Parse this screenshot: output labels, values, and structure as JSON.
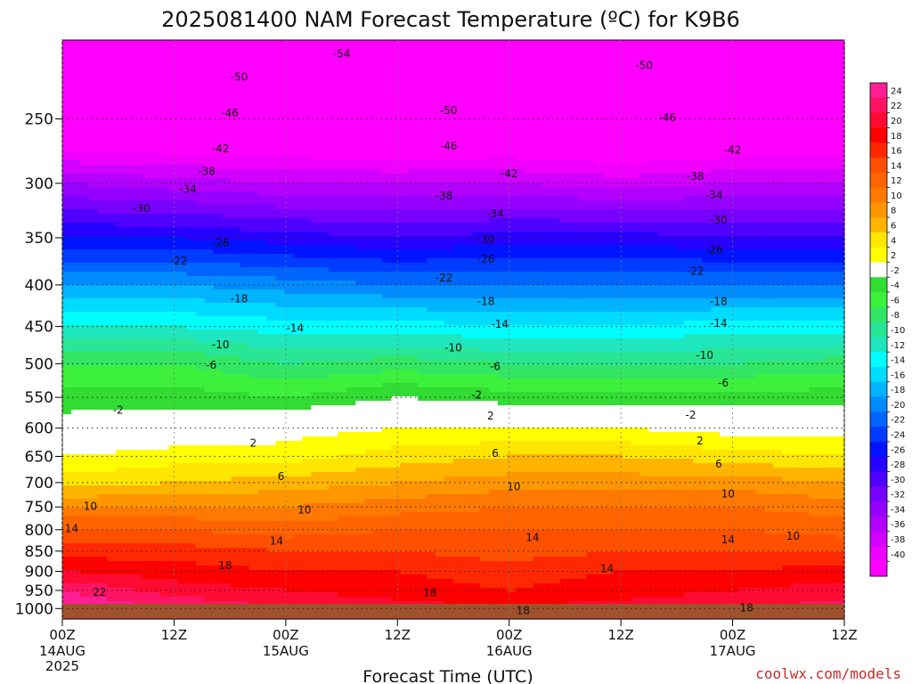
{
  "title": "2025081400 NAM Forecast Temperature (ºC) for K9B6",
  "xlabel": "Forecast Time (UTC)",
  "credit": "coolwx.com/models",
  "chart_data": {
    "type": "heatmap",
    "variable": "Temperature (ºC)",
    "y_axis": {
      "quantity": "pressure (hPa)",
      "orientation": "decreasing upward",
      "ticks": [
        250,
        300,
        350,
        400,
        450,
        500,
        550,
        600,
        650,
        700,
        750,
        800,
        850,
        900,
        950,
        1000
      ],
      "range": [
        1030,
        200
      ]
    },
    "x_axis": {
      "quantity": "forecast time (UTC)",
      "range_hours": [
        0,
        84
      ],
      "ticks": [
        {
          "hour": 0,
          "label": "00Z",
          "sub": [
            "14AUG",
            "2025"
          ]
        },
        {
          "hour": 12,
          "label": "12Z",
          "sub": []
        },
        {
          "hour": 24,
          "label": "00Z",
          "sub": [
            "15AUG"
          ]
        },
        {
          "hour": 36,
          "label": "12Z",
          "sub": []
        },
        {
          "hour": 48,
          "label": "00Z",
          "sub": [
            "16AUG"
          ]
        },
        {
          "hour": 60,
          "label": "12Z",
          "sub": []
        },
        {
          "hour": 72,
          "label": "00Z",
          "sub": [
            "17AUG"
          ]
        },
        {
          "hour": 84,
          "label": "12Z",
          "sub": []
        }
      ]
    },
    "grid": true,
    "colorbar": {
      "position": "right",
      "labels": [
        24,
        22,
        20,
        18,
        16,
        14,
        12,
        10,
        8,
        6,
        4,
        2,
        -2,
        -4,
        -6,
        -8,
        -10,
        -12,
        -14,
        -16,
        -18,
        -20,
        -22,
        -24,
        -26,
        -28,
        -30,
        -32,
        -34,
        -36,
        -38,
        -40
      ],
      "colors": [
        "#ff1e96",
        "#ff1464",
        "#ff0a32",
        "#ff0000",
        "#ff2800",
        "#ff5000",
        "#ff6400",
        "#ff7800",
        "#ff9600",
        "#ffb400",
        "#ffe600",
        "#ffff00",
        "#ffffff",
        "#32dc32",
        "#3cf03c",
        "#32e664",
        "#28e696",
        "#1ee6be",
        "#00ffff",
        "#00dcff",
        "#00b4ff",
        "#008cff",
        "#0064ff",
        "#003cff",
        "#0014ff",
        "#2800ff",
        "#5000ff",
        "#7800ff",
        "#9600ff",
        "#b400ff",
        "#d200ff",
        "#f000ff",
        "#ff00ff"
      ]
    },
    "temperature_profiles": {
      "pressure_levels": [
        1000,
        950,
        900,
        850,
        800,
        750,
        700,
        650,
        600,
        550,
        500,
        450,
        400,
        350,
        300,
        250,
        200
      ],
      "hours": [
        0,
        12,
        24,
        36,
        48,
        60,
        72,
        84
      ],
      "values": [
        [
          26,
          24,
          20,
          17,
          14,
          10,
          5,
          2,
          -1,
          -3,
          -6,
          -12,
          -18,
          -26,
          -34,
          -46,
          -56
        ],
        [
          24,
          21,
          19,
          17,
          14,
          10,
          6,
          3,
          0,
          -3,
          -6,
          -12,
          -18,
          -26,
          -35,
          -46,
          -56
        ],
        [
          22,
          20,
          18,
          16,
          13,
          10,
          7,
          3,
          1,
          -4,
          -8,
          -13,
          -19,
          -27,
          -36,
          -46,
          -55
        ],
        [
          21,
          19,
          18,
          16,
          14,
          11,
          8,
          5,
          2,
          -2,
          -7,
          -13,
          -20,
          -28,
          -36,
          -47,
          -55
        ],
        [
          20,
          18,
          17,
          15,
          14,
          12,
          9,
          6,
          2,
          -3,
          -8,
          -14,
          -20,
          -27,
          -36,
          -46,
          -55
        ],
        [
          21,
          19,
          18,
          16,
          14,
          12,
          9,
          6,
          2,
          -3,
          -8,
          -14,
          -20,
          -27,
          -37,
          -47,
          -55
        ],
        [
          22,
          20,
          18,
          16,
          14,
          12,
          9,
          5,
          1,
          -3,
          -8,
          -13,
          -20,
          -28,
          -36,
          -46,
          -54
        ],
        [
          23,
          21,
          19,
          16,
          13,
          11,
          8,
          4,
          1,
          -3,
          -7,
          -13,
          -20,
          -28,
          -36,
          -46,
          -54
        ]
      ]
    },
    "contour_labels": [
      {
        "text": "-54",
        "hour": 30,
        "p": 208
      },
      {
        "text": "-50",
        "hour": 19,
        "p": 222
      },
      {
        "text": "-50",
        "hour": 41.5,
        "p": 244
      },
      {
        "text": "-50",
        "hour": 62.5,
        "p": 215
      },
      {
        "text": "-46",
        "hour": 18,
        "p": 246
      },
      {
        "text": "-46",
        "hour": 41.5,
        "p": 270
      },
      {
        "text": "-46",
        "hour": 65,
        "p": 249
      },
      {
        "text": "-42",
        "hour": 17,
        "p": 272
      },
      {
        "text": "-42",
        "hour": 48,
        "p": 292
      },
      {
        "text": "-42",
        "hour": 72,
        "p": 273
      },
      {
        "text": "-38",
        "hour": 15.5,
        "p": 290
      },
      {
        "text": "-38",
        "hour": 41,
        "p": 311
      },
      {
        "text": "-38",
        "hour": 68,
        "p": 294
      },
      {
        "text": "-34",
        "hour": 13.5,
        "p": 305
      },
      {
        "text": "-34",
        "hour": 46.5,
        "p": 327
      },
      {
        "text": "-34",
        "hour": 70,
        "p": 310
      },
      {
        "text": "-30",
        "hour": 8.5,
        "p": 322
      },
      {
        "text": "-30",
        "hour": 45.5,
        "p": 352
      },
      {
        "text": "-30",
        "hour": 70.5,
        "p": 333
      },
      {
        "text": "-26",
        "hour": 17,
        "p": 355
      },
      {
        "text": "-26",
        "hour": 45.5,
        "p": 372
      },
      {
        "text": "-26",
        "hour": 70,
        "p": 362
      },
      {
        "text": "-22",
        "hour": 12.5,
        "p": 374
      },
      {
        "text": "-22",
        "hour": 41,
        "p": 392
      },
      {
        "text": "-22",
        "hour": 68,
        "p": 385
      },
      {
        "text": "-18",
        "hour": 19,
        "p": 416
      },
      {
        "text": "-18",
        "hour": 45.5,
        "p": 419
      },
      {
        "text": "-18",
        "hour": 70.5,
        "p": 419
      },
      {
        "text": "-14",
        "hour": 25,
        "p": 452
      },
      {
        "text": "-14",
        "hour": 47,
        "p": 447
      },
      {
        "text": "-14",
        "hour": 70.5,
        "p": 446
      },
      {
        "text": "-10",
        "hour": 17,
        "p": 474
      },
      {
        "text": "-10",
        "hour": 42,
        "p": 478
      },
      {
        "text": "-10",
        "hour": 69,
        "p": 488
      },
      {
        "text": "-6",
        "hour": 16,
        "p": 502
      },
      {
        "text": "-6",
        "hour": 46.5,
        "p": 504
      },
      {
        "text": "-6",
        "hour": 71,
        "p": 528
      },
      {
        "text": "-2",
        "hour": 6,
        "p": 570
      },
      {
        "text": "-2",
        "hour": 44.5,
        "p": 546
      },
      {
        "text": "-2",
        "hour": 67.5,
        "p": 578
      },
      {
        "text": "2",
        "hour": 20.5,
        "p": 626
      },
      {
        "text": "2",
        "hour": 46,
        "p": 580
      },
      {
        "text": "2",
        "hour": 68.5,
        "p": 622
      },
      {
        "text": "6",
        "hour": 23.5,
        "p": 688
      },
      {
        "text": "6",
        "hour": 46.5,
        "p": 644
      },
      {
        "text": "6",
        "hour": 70.5,
        "p": 664
      },
      {
        "text": "10",
        "hour": 3,
        "p": 749
      },
      {
        "text": "10",
        "hour": 26,
        "p": 756
      },
      {
        "text": "10",
        "hour": 48.5,
        "p": 708
      },
      {
        "text": "10",
        "hour": 71.5,
        "p": 723
      },
      {
        "text": "10",
        "hour": 78.5,
        "p": 815
      },
      {
        "text": "14",
        "hour": 1,
        "p": 797
      },
      {
        "text": "14",
        "hour": 23,
        "p": 826
      },
      {
        "text": "14",
        "hour": 50.5,
        "p": 818
      },
      {
        "text": "14",
        "hour": 71.5,
        "p": 823
      },
      {
        "text": "14",
        "hour": 58.5,
        "p": 893
      },
      {
        "text": "18",
        "hour": 17.5,
        "p": 885
      },
      {
        "text": "18",
        "hour": 39.5,
        "p": 956
      },
      {
        "text": "18",
        "hour": 49.5,
        "p": 1006
      },
      {
        "text": "18",
        "hour": 73.5,
        "p": 998
      },
      {
        "text": "22",
        "hour": 4,
        "p": 955
      }
    ]
  }
}
